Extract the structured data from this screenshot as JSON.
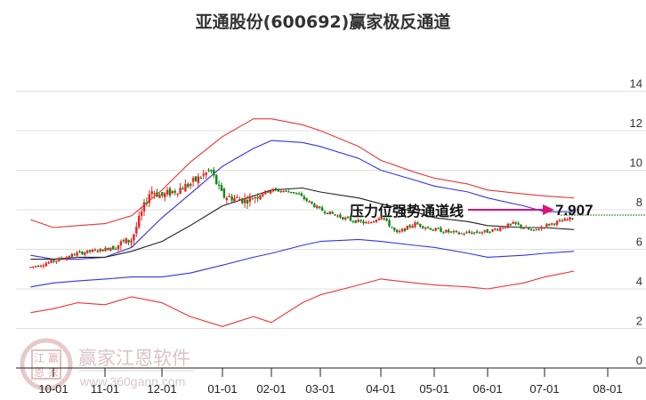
{
  "title": "亚通股份(600692)赢家极反通道",
  "watermark": {
    "brand": "赢家江恩软件",
    "url": "www.360gann.com",
    "seal_chars": [
      "江",
      "赢",
      "恩",
      "家"
    ]
  },
  "colors": {
    "up_candle": "#ee2222",
    "down_candle": "#118811",
    "outer_band": "#ee3333",
    "inner_band": "#3333ee",
    "mid_line": "#222222",
    "arrow": "#dd1177",
    "last_price_line": "#118811",
    "grid": "#e0e0e0"
  },
  "chart_data": {
    "type": "candlestick",
    "title": "亚通股份(600692)赢家极反通道",
    "xlabel": "",
    "ylabel": "",
    "ylim": [
      0,
      14
    ],
    "y_ticks": [
      0,
      2,
      4,
      6,
      8,
      10,
      12,
      14
    ],
    "x_ticks": [
      "10-01",
      "11-01",
      "12-01",
      "01-01",
      "02-01",
      "03-01",
      "04-01",
      "05-01",
      "06-01",
      "07-01",
      "08-01"
    ],
    "grid": "horizontal",
    "annotation": {
      "label": "压力位强势通道线",
      "value": "7.907"
    },
    "series": [
      {
        "name": "outer_upper",
        "color": "red",
        "points": [
          [
            "09-15",
            7.5
          ],
          [
            "10-01",
            7.1
          ],
          [
            "10-15",
            7.2
          ],
          [
            "11-01",
            7.3
          ],
          [
            "11-15",
            7.7
          ],
          [
            "12-01",
            9.0
          ],
          [
            "12-15",
            10.4
          ],
          [
            "01-01",
            11.7
          ],
          [
            "01-20",
            12.6
          ],
          [
            "02-01",
            12.6
          ],
          [
            "02-20",
            12.3
          ],
          [
            "03-01",
            12.0
          ],
          [
            "03-20",
            11.2
          ],
          [
            "04-01",
            10.5
          ],
          [
            "04-20",
            9.9
          ],
          [
            "05-01",
            9.6
          ],
          [
            "05-20",
            9.3
          ],
          [
            "06-01",
            9.0
          ],
          [
            "06-20",
            8.8
          ],
          [
            "07-01",
            8.7
          ],
          [
            "07-15",
            8.6
          ]
        ]
      },
      {
        "name": "inner_upper",
        "color": "blue",
        "points": [
          [
            "09-15",
            5.7
          ],
          [
            "10-01",
            5.5
          ],
          [
            "10-15",
            5.5
          ],
          [
            "11-01",
            5.6
          ],
          [
            "11-15",
            6.1
          ],
          [
            "12-01",
            7.6
          ],
          [
            "12-15",
            8.8
          ],
          [
            "01-01",
            10.2
          ],
          [
            "01-20",
            11.1
          ],
          [
            "02-01",
            11.5
          ],
          [
            "02-20",
            11.4
          ],
          [
            "03-01",
            11.2
          ],
          [
            "03-20",
            10.6
          ],
          [
            "04-01",
            10.0
          ],
          [
            "04-20",
            9.5
          ],
          [
            "05-01",
            9.2
          ],
          [
            "05-20",
            8.9
          ],
          [
            "06-01",
            8.6
          ],
          [
            "06-20",
            8.2
          ],
          [
            "07-01",
            7.9
          ],
          [
            "07-15",
            7.9
          ]
        ]
      },
      {
        "name": "mid",
        "color": "black",
        "points": [
          [
            "09-15",
            5.5
          ],
          [
            "10-01",
            5.5
          ],
          [
            "10-15",
            5.6
          ],
          [
            "11-01",
            5.6
          ],
          [
            "11-15",
            5.9
          ],
          [
            "12-01",
            6.4
          ],
          [
            "12-15",
            7.2
          ],
          [
            "01-01",
            8.2
          ],
          [
            "01-20",
            8.7
          ],
          [
            "02-01",
            9.0
          ],
          [
            "02-20",
            9.1
          ],
          [
            "03-01",
            8.9
          ],
          [
            "03-20",
            8.6
          ],
          [
            "04-01",
            8.3
          ],
          [
            "04-20",
            7.9
          ],
          [
            "05-01",
            7.6
          ],
          [
            "05-20",
            7.4
          ],
          [
            "06-01",
            7.2
          ],
          [
            "06-20",
            7.1
          ],
          [
            "07-01",
            7.1
          ],
          [
            "07-15",
            7.0
          ]
        ]
      },
      {
        "name": "inner_lower",
        "color": "blue",
        "points": [
          [
            "09-15",
            4.1
          ],
          [
            "10-01",
            4.3
          ],
          [
            "10-15",
            4.4
          ],
          [
            "11-01",
            4.5
          ],
          [
            "11-15",
            4.6
          ],
          [
            "12-01",
            4.6
          ],
          [
            "12-15",
            4.8
          ],
          [
            "01-01",
            5.2
          ],
          [
            "01-20",
            5.6
          ],
          [
            "02-01",
            5.8
          ],
          [
            "02-20",
            6.2
          ],
          [
            "03-01",
            6.4
          ],
          [
            "03-20",
            6.5
          ],
          [
            "04-01",
            6.4
          ],
          [
            "04-20",
            6.2
          ],
          [
            "05-01",
            6.1
          ],
          [
            "05-20",
            5.8
          ],
          [
            "06-01",
            5.6
          ],
          [
            "06-20",
            5.7
          ],
          [
            "07-01",
            5.8
          ],
          [
            "07-15",
            5.9
          ]
        ]
      },
      {
        "name": "outer_lower",
        "color": "red",
        "points": [
          [
            "09-15",
            2.8
          ],
          [
            "10-01",
            3.0
          ],
          [
            "10-15",
            3.3
          ],
          [
            "11-01",
            3.2
          ],
          [
            "11-15",
            3.6
          ],
          [
            "12-01",
            3.3
          ],
          [
            "12-15",
            2.6
          ],
          [
            "01-01",
            2.1
          ],
          [
            "01-20",
            2.6
          ],
          [
            "02-01",
            2.3
          ],
          [
            "02-20",
            3.3
          ],
          [
            "03-01",
            3.7
          ],
          [
            "03-20",
            4.2
          ],
          [
            "04-01",
            4.5
          ],
          [
            "04-20",
            4.3
          ],
          [
            "05-01",
            4.2
          ],
          [
            "05-20",
            4.1
          ],
          [
            "06-01",
            4.0
          ],
          [
            "06-20",
            4.3
          ],
          [
            "07-01",
            4.6
          ],
          [
            "07-15",
            4.9
          ]
        ]
      },
      {
        "name": "close",
        "color": "candles",
        "points": [
          [
            "09-15",
            5.1
          ],
          [
            "10-01",
            5.4
          ],
          [
            "10-15",
            5.8
          ],
          [
            "11-01",
            6.0
          ],
          [
            "11-15",
            6.5
          ],
          [
            "11-25",
            9.0
          ],
          [
            "12-01",
            8.7
          ],
          [
            "12-15",
            9.3
          ],
          [
            "12-25",
            10.0
          ],
          [
            "01-01",
            8.7
          ],
          [
            "01-15",
            8.5
          ],
          [
            "02-01",
            9.0
          ],
          [
            "02-15",
            8.9
          ],
          [
            "03-01",
            8.0
          ],
          [
            "03-15",
            7.5
          ],
          [
            "03-25",
            7.3
          ],
          [
            "04-01",
            7.7
          ],
          [
            "04-10",
            6.8
          ],
          [
            "04-20",
            7.3
          ],
          [
            "05-01",
            7.0
          ],
          [
            "05-15",
            6.8
          ],
          [
            "06-01",
            6.9
          ],
          [
            "06-15",
            7.3
          ],
          [
            "06-25",
            6.9
          ],
          [
            "07-01",
            7.2
          ],
          [
            "07-15",
            7.6
          ]
        ]
      }
    ],
    "last_value": 7.907
  },
  "axis": {
    "y_labels": [
      "14",
      "12",
      "10",
      "8",
      "6",
      "4",
      "2",
      "0"
    ],
    "x_labels": [
      "10-01",
      "11-01",
      "12-01",
      "01-01",
      "02-01",
      "03-01",
      "04-01",
      "05-01",
      "06-01",
      "07-01",
      "08-01"
    ]
  }
}
